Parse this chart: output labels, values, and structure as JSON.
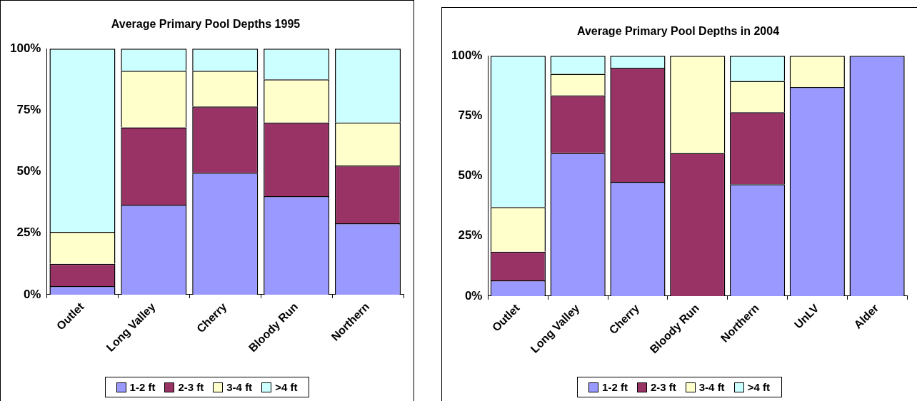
{
  "chart_data": [
    {
      "type": "bar",
      "title": "Average Primary Pool Depths 1995",
      "categories": [
        "Outlet",
        "Long Valley",
        "Cherry",
        "Bloody Run",
        "Northern"
      ],
      "stacked": true,
      "ylim": [
        0,
        100
      ],
      "yticks": [
        {
          "value": 0,
          "label": "0%"
        },
        {
          "value": 25,
          "label": "25%"
        },
        {
          "value": 50,
          "label": "50%"
        },
        {
          "value": 75,
          "label": "75%"
        },
        {
          "value": 100,
          "label": "100%"
        }
      ],
      "grid": false,
      "legend": "bottom",
      "series": [
        {
          "name": "1-2 ft",
          "color": "#9999ff",
          "values": [
            3.5,
            36.5,
            49.5,
            40,
            29
          ]
        },
        {
          "name": "2-3 ft",
          "color": "#993366",
          "values": [
            9,
            31.5,
            27,
            30,
            23.5
          ]
        },
        {
          "name": "3-4 ft",
          "color": "#ffffcc",
          "values": [
            13,
            23,
            14.5,
            17.5,
            17.5
          ]
        },
        {
          "name": ">4 ft",
          "color": "#ccffff",
          "values": [
            74.5,
            9,
            9,
            12.5,
            30
          ]
        }
      ]
    },
    {
      "type": "bar",
      "title": "Average Primary Pool Depths in 2004",
      "categories": [
        "Outlet",
        "Long Valley",
        "Cherry",
        "Bloody Run",
        "Northern",
        "UnLV",
        "Alder"
      ],
      "stacked": true,
      "ylim": [
        0,
        100
      ],
      "yticks": [
        {
          "value": 0,
          "label": "0%"
        },
        {
          "value": 25,
          "label": "25%"
        },
        {
          "value": 50,
          "label": "50%"
        },
        {
          "value": 75,
          "label": "75%"
        },
        {
          "value": 100,
          "label": "100%"
        }
      ],
      "grid": false,
      "legend": "bottom",
      "series": [
        {
          "name": "1-2 ft",
          "color": "#9999ff",
          "values": [
            6.5,
            59.5,
            47.5,
            0,
            46.5,
            87,
            100
          ]
        },
        {
          "name": "2-3 ft",
          "color": "#993366",
          "values": [
            12,
            24,
            47.5,
            59.5,
            30,
            0,
            0
          ]
        },
        {
          "name": "3-4 ft",
          "color": "#ffffcc",
          "values": [
            18.5,
            9,
            0,
            40.5,
            13,
            13,
            0
          ]
        },
        {
          "name": ">4 ft",
          "color": "#ccffff",
          "values": [
            63,
            7.5,
            5,
            0,
            10.5,
            0,
            0
          ]
        }
      ]
    }
  ]
}
